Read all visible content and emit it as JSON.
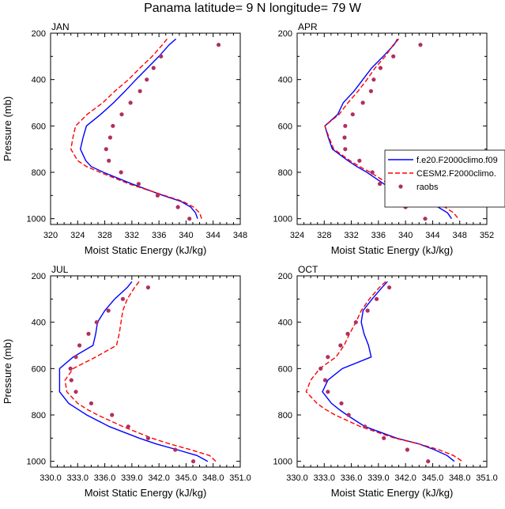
{
  "figure_title": "Panama  latitude= 9 N longitude= 79 W",
  "colors": {
    "model1": "#0000ff",
    "model2": "#ff0000",
    "obs": "#b03060"
  },
  "legend": {
    "panel": "APR",
    "entries": [
      "f.e20.F2000climo.f09",
      "CESM2.F2000climo.",
      "raobs"
    ]
  },
  "chart_data": [
    {
      "type": "line",
      "panel": "JAN",
      "title": "JAN",
      "xlabel": "Moist Static Energy (kJ/kg)",
      "ylabel": "Pressure (mb)",
      "xlim": [
        320,
        348
      ],
      "ylim": [
        1025,
        200
      ],
      "xticks": [
        "320",
        "324",
        "328",
        "332",
        "336",
        "340",
        "344",
        "348"
      ],
      "yticks": [
        "200",
        "400",
        "600",
        "800",
        "1000"
      ],
      "series": [
        {
          "name": "f.e20.F2000climo.f09",
          "style": "solid",
          "color": "#0000ff",
          "pressure": [
            225,
            250,
            300,
            350,
            400,
            450,
            500,
            550,
            600,
            650,
            700,
            750,
            775,
            800,
            850,
            900,
            925,
            950,
            975,
            1000
          ],
          "mse": [
            338.5,
            337.5,
            336,
            334.3,
            332.6,
            331,
            329.3,
            327.4,
            325.3,
            324.8,
            324.4,
            325.2,
            326,
            327.8,
            332,
            336.6,
            339.2,
            340.7,
            341.4,
            341.7
          ]
        },
        {
          "name": "CESM2.F2000climo.",
          "style": "dashed",
          "color": "#ff0000",
          "pressure": [
            225,
            250,
            300,
            350,
            400,
            450,
            500,
            550,
            600,
            650,
            700,
            750,
            775,
            800,
            850,
            900,
            925,
            950,
            975,
            1000
          ],
          "mse": [
            337.2,
            336.5,
            335,
            333.2,
            331.5,
            329.5,
            327.7,
            325.4,
            323.7,
            323.3,
            323,
            324,
            325.3,
            327.3,
            331.6,
            336.8,
            339.5,
            341.1,
            342,
            342.3
          ]
        },
        {
          "name": "raobs",
          "style": "points",
          "color": "#b03060",
          "pressure": [
            250,
            300,
            350,
            400,
            450,
            500,
            550,
            600,
            650,
            700,
            750,
            800,
            850,
            900,
            950,
            1000
          ],
          "mse": [
            344.8,
            336.3,
            335.2,
            334.2,
            333.2,
            331.8,
            330.5,
            329.2,
            328.8,
            328.2,
            328.6,
            330.4,
            333,
            335.8,
            338.8,
            340.5
          ]
        }
      ]
    },
    {
      "type": "line",
      "panel": "APR",
      "title": "APR",
      "xlabel": "Moist Static Energy (kJ/kg)",
      "ylabel": "",
      "xlim": [
        324,
        352
      ],
      "ylim": [
        1025,
        200
      ],
      "xticks": [
        "324",
        "328",
        "332",
        "336",
        "340",
        "344",
        "348",
        "352"
      ],
      "yticks": [
        "200",
        "400",
        "600",
        "800",
        "1000"
      ],
      "series": [
        {
          "name": "f.e20.F2000climo.f09",
          "style": "solid",
          "color": "#0000ff",
          "pressure": [
            225,
            250,
            300,
            350,
            400,
            450,
            500,
            550,
            600,
            650,
            700,
            750,
            775,
            800,
            850,
            900,
            925,
            950,
            975,
            1000
          ],
          "mse": [
            338.8,
            338.3,
            336.7,
            335,
            333.7,
            332.4,
            330.8,
            330,
            328.1,
            328.6,
            329.2,
            331.5,
            332.8,
            334.3,
            336.8,
            340.2,
            342.8,
            344.8,
            346.2,
            346.8
          ]
        },
        {
          "name": "CESM2.F2000climo.",
          "style": "dashed",
          "color": "#ff0000",
          "pressure": [
            225,
            250,
            300,
            350,
            400,
            450,
            500,
            550,
            600,
            650,
            700,
            750,
            775,
            800,
            850,
            900,
            925,
            950,
            975,
            1000
          ],
          "mse": [
            339,
            338.2,
            337,
            335.5,
            334.3,
            333,
            331.5,
            330.2,
            328.1,
            328.7,
            329.4,
            331.8,
            333.2,
            334.8,
            337.5,
            341.4,
            344,
            345.8,
            347.1,
            347.8
          ]
        },
        {
          "name": "raobs",
          "style": "points",
          "color": "#b03060",
          "pressure": [
            250,
            300,
            350,
            400,
            450,
            500,
            550,
            600,
            650,
            700,
            750,
            800,
            850,
            900,
            950,
            1000
          ],
          "mse": [
            342.2,
            338.2,
            336.3,
            335.3,
            334.9,
            333.7,
            332.2,
            331.1,
            331,
            331.1,
            333.2,
            335.1,
            336.2,
            337.7,
            340,
            342.9
          ]
        }
      ]
    },
    {
      "type": "line",
      "panel": "JUL",
      "title": "JUL",
      "xlabel": "Moist Static Energy (kJ/kg)",
      "ylabel": "Pressure (mb)",
      "xlim": [
        330,
        351
      ],
      "ylim": [
        1025,
        200
      ],
      "xticks": [
        "330.0",
        "333.0",
        "336.0",
        "339.0",
        "342.0",
        "345.0",
        "348.0",
        "351.0"
      ],
      "yticks": [
        "200",
        "400",
        "600",
        "800",
        "1000"
      ],
      "series": [
        {
          "name": "f.e20.F2000climo.f09",
          "style": "solid",
          "color": "#0000ff",
          "pressure": [
            225,
            250,
            300,
            350,
            400,
            450,
            500,
            550,
            600,
            650,
            700,
            750,
            775,
            800,
            850,
            900,
            925,
            950,
            975,
            1000
          ],
          "mse": [
            339,
            338.5,
            337.1,
            336,
            335.2,
            335,
            334.7,
            332.5,
            331,
            331,
            331,
            332,
            333,
            334,
            336.5,
            339.8,
            341.7,
            344,
            346.2,
            347.4
          ]
        },
        {
          "name": "CESM2.F2000climo.",
          "style": "dashed",
          "color": "#ff0000",
          "pressure": [
            225,
            250,
            300,
            350,
            400,
            450,
            500,
            550,
            600,
            650,
            700,
            750,
            775,
            800,
            850,
            900,
            925,
            950,
            975,
            1000
          ],
          "mse": [
            339.8,
            339.3,
            338.5,
            338,
            337.8,
            337.6,
            337.3,
            335,
            332.5,
            331.6,
            331.8,
            333,
            334,
            335.2,
            338,
            341.2,
            343.2,
            345.5,
            347.6,
            348.3
          ]
        },
        {
          "name": "raobs",
          "style": "points",
          "color": "#b03060",
          "pressure": [
            250,
            300,
            350,
            400,
            450,
            500,
            550,
            600,
            650,
            700,
            750,
            800,
            850,
            900,
            950,
            1000
          ],
          "mse": [
            340.8,
            338,
            336.4,
            335.1,
            334.2,
            333.2,
            332.8,
            332.2,
            332.3,
            332.8,
            334.5,
            336.8,
            338.6,
            340.8,
            343.8,
            345.8
          ]
        }
      ]
    },
    {
      "type": "line",
      "panel": "OCT",
      "title": "OCT",
      "xlabel": "Moist Static Energy (kJ/kg)",
      "ylabel": "",
      "xlim": [
        330,
        351
      ],
      "ylim": [
        1025,
        200
      ],
      "xticks": [
        "330.0",
        "333.0",
        "336.0",
        "339.0",
        "342.0",
        "345.0",
        "348.0",
        "351.0"
      ],
      "yticks": [
        "200",
        "400",
        "600",
        "800",
        "1000"
      ],
      "series": [
        {
          "name": "f.e20.F2000climo.f09",
          "style": "solid",
          "color": "#0000ff",
          "pressure": [
            225,
            250,
            300,
            350,
            400,
            450,
            500,
            550,
            600,
            650,
            700,
            750,
            775,
            800,
            850,
            900,
            925,
            950,
            975,
            1000
          ],
          "mse": [
            340,
            339.4,
            338.3,
            337.3,
            337.1,
            337.4,
            337.9,
            338.2,
            335,
            333.4,
            332.8,
            333.8,
            334.6,
            335.5,
            337.5,
            341,
            343.5,
            345.2,
            346.6,
            347.4
          ]
        },
        {
          "name": "CESM2.F2000climo.",
          "style": "dashed",
          "color": "#ff0000",
          "pressure": [
            225,
            250,
            300,
            350,
            400,
            450,
            500,
            550,
            600,
            650,
            700,
            750,
            775,
            800,
            850,
            900,
            925,
            950,
            975,
            1000
          ],
          "mse": [
            339.8,
            339.1,
            338,
            337.1,
            336.5,
            335.8,
            335.2,
            334.3,
            332.5,
            331.5,
            331,
            332.2,
            333.1,
            334.2,
            337,
            340.8,
            343.5,
            345.7,
            347.3,
            348.3
          ]
        },
        {
          "name": "raobs",
          "style": "points",
          "color": "#b03060",
          "pressure": [
            250,
            300,
            350,
            400,
            450,
            500,
            550,
            600,
            650,
            700,
            750,
            800,
            850,
            900,
            950,
            1000
          ],
          "mse": [
            340.2,
            338.8,
            337.8,
            336.5,
            335.6,
            334.8,
            333.4,
            332.6,
            333.1,
            333.4,
            334.9,
            335.7,
            337.5,
            339.6,
            342.2,
            344.5
          ]
        }
      ]
    }
  ]
}
